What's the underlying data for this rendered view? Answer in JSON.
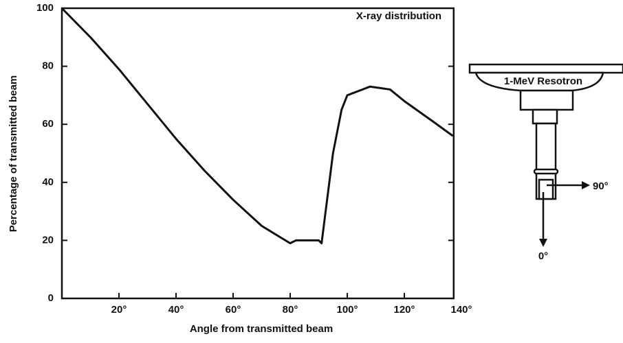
{
  "chart_data": {
    "type": "line",
    "annotation": "X-ray distribution",
    "xlabel": "Angle from transmitted beam",
    "ylabel": "Percentage of transmitted beam",
    "x": [
      0,
      10,
      20,
      30,
      40,
      50,
      60,
      70,
      80,
      82,
      90,
      91,
      95,
      98,
      100,
      108,
      115,
      120,
      130,
      137
    ],
    "series": [
      {
        "color": "#111111",
        "values": [
          100,
          90,
          79,
          67,
          55,
          44,
          34,
          25,
          19,
          20,
          20,
          19,
          50,
          65,
          70,
          73,
          72,
          68,
          61,
          56
        ]
      }
    ],
    "xlim": [
      0,
      140
    ],
    "ylim": [
      0,
      100
    ],
    "xticks": [
      {
        "value": 20,
        "label": "20°"
      },
      {
        "value": 40,
        "label": "40°"
      },
      {
        "value": 60,
        "label": "60°"
      },
      {
        "value": 80,
        "label": "80°"
      },
      {
        "value": 100,
        "label": "100°"
      },
      {
        "value": 120,
        "label": "120°"
      },
      {
        "value": 140,
        "label": "140°"
      }
    ],
    "yticks": [
      0,
      20,
      40,
      60,
      80,
      100
    ]
  },
  "diagram": {
    "device": "1-MeV Resotron",
    "side_direction": "90°",
    "down_direction": "0°"
  }
}
